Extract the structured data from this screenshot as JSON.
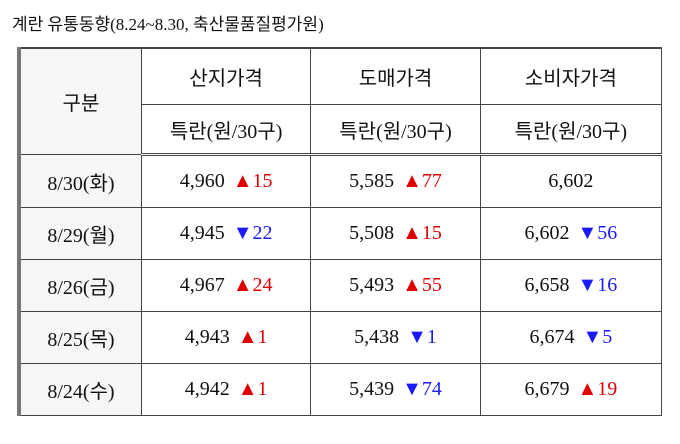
{
  "header": {
    "title": "계란 유통동향(8.24~8.30, 축산물품질평가원)"
  },
  "table": {
    "corner": "구분",
    "columns": [
      {
        "name": "산지가격",
        "unit": "특란(원/30구)"
      },
      {
        "name": "도매가격",
        "unit": "특란(원/30구)"
      },
      {
        "name": "소비자가격",
        "unit": "특란(원/30구)"
      }
    ],
    "rows": [
      {
        "date": "8/30(화)",
        "cells": [
          {
            "price": "4,960",
            "change": {
              "arrow": "▲",
              "value": "15",
              "color": "#e00000"
            }
          },
          {
            "price": "5,585",
            "change": {
              "arrow": "▲",
              "value": "77",
              "color": "#e00000"
            }
          },
          {
            "price": "6,602"
          }
        ]
      },
      {
        "date": "8/29(월)",
        "cells": [
          {
            "price": "4,945",
            "change": {
              "arrow": "▼",
              "value": "22",
              "color": "#1a1aff"
            }
          },
          {
            "price": "5,508",
            "change": {
              "arrow": "▲",
              "value": "15",
              "color": "#e00000"
            }
          },
          {
            "price": "6,602",
            "change": {
              "arrow": "▼",
              "value": "56",
              "color": "#1a1aff"
            }
          }
        ]
      },
      {
        "date": "8/26(금)",
        "cells": [
          {
            "price": "4,967",
            "change": {
              "arrow": "▲",
              "value": "24",
              "color": "#e00000"
            }
          },
          {
            "price": "5,493",
            "change": {
              "arrow": "▲",
              "value": "55",
              "color": "#e00000"
            }
          },
          {
            "price": "6,658",
            "change": {
              "arrow": "▼",
              "value": "16",
              "color": "#1a1aff"
            }
          }
        ]
      },
      {
        "date": "8/25(목)",
        "cells": [
          {
            "price": "4,943",
            "change": {
              "arrow": "▲",
              "value": "1",
              "color": "#e00000"
            }
          },
          {
            "price": "5,438",
            "change": {
              "arrow": "▼",
              "value": "1",
              "color": "#1a1aff"
            }
          },
          {
            "price": "6,674",
            "change": {
              "arrow": "▼",
              "value": "5",
              "color": "#1a1aff"
            }
          }
        ]
      },
      {
        "date": "8/24(수)",
        "cells": [
          {
            "price": "4,942",
            "change": {
              "arrow": "▲",
              "value": "1",
              "color": "#e00000"
            }
          },
          {
            "price": "5,439",
            "change": {
              "arrow": "▼",
              "value": "74",
              "color": "#1a1aff"
            }
          },
          {
            "price": "6,679",
            "change": {
              "arrow": "▲",
              "value": "19",
              "color": "#e00000"
            }
          }
        ]
      }
    ]
  }
}
